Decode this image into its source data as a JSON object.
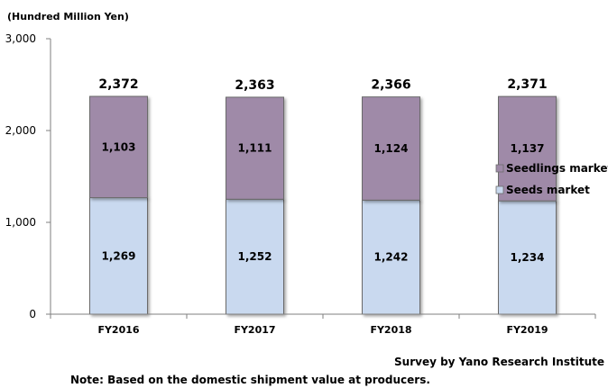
{
  "chart_data": {
    "type": "bar",
    "stacked": true,
    "unit_label": "(Hundred Million Yen)",
    "categories": [
      "FY2016",
      "FY2017",
      "FY2018",
      "FY2019"
    ],
    "series": [
      {
        "name": "Seeds market",
        "values": [
          1269,
          1252,
          1242,
          1234
        ],
        "color": "#c9d9ef"
      },
      {
        "name": "Seedlings market",
        "values": [
          1103,
          1111,
          1124,
          1137
        ],
        "color": "#9f8aa8"
      }
    ],
    "totals": [
      2372,
      2363,
      2366,
      2371
    ],
    "ylim": [
      0,
      3000
    ],
    "yticks": [
      0,
      1000,
      2000,
      3000
    ],
    "ytick_labels": [
      "0",
      "1,000",
      "2,000",
      "3,000"
    ],
    "grid": false,
    "legend_position": "right"
  },
  "source_note": "Survey by Yano Research Institute",
  "footnote": "Note: Based on the domestic shipment value at producers."
}
